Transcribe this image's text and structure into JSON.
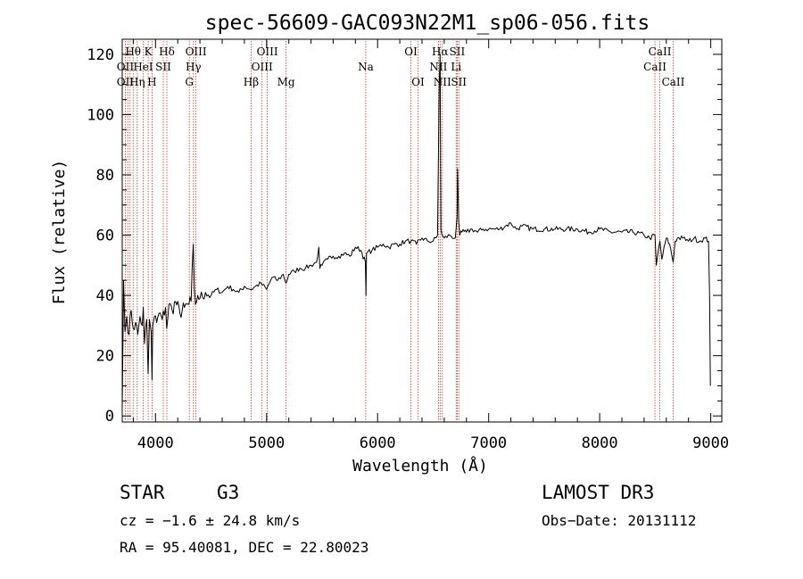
{
  "chart_data": {
    "type": "line",
    "title": "spec-56609-GAC093N22M1_sp06-056.fits",
    "xlabel": "Wavelength (Å)",
    "ylabel": "Flux (relative)",
    "xlim": [
      3700,
      9100
    ],
    "ylim": [
      -2,
      125
    ],
    "xticks": [
      4000,
      5000,
      6000,
      7000,
      8000,
      9000
    ],
    "yticks": [
      0,
      20,
      40,
      60,
      80,
      100,
      120
    ],
    "series": [
      {
        "name": "flux",
        "x": [
          3700,
          3712,
          3725,
          3740,
          3760,
          3780,
          3800,
          3820,
          3840,
          3860,
          3880,
          3890,
          3900,
          3920,
          3933,
          3945,
          3960,
          3968,
          3975,
          3990,
          4010,
          4030,
          4060,
          4090,
          4101,
          4120,
          4150,
          4180,
          4220,
          4260,
          4300,
          4320,
          4340,
          4350,
          4360,
          4380,
          4400,
          4450,
          4500,
          4550,
          4600,
          4650,
          4700,
          4750,
          4800,
          4861,
          4900,
          4950,
          5000,
          5050,
          5100,
          5150,
          5175,
          5200,
          5250,
          5300,
          5350,
          5400,
          5450,
          5470,
          5480,
          5500,
          5550,
          5600,
          5650,
          5700,
          5750,
          5800,
          5850,
          5890,
          5895,
          5900,
          5950,
          6000,
          6050,
          6100,
          6150,
          6200,
          6250,
          6300,
          6350,
          6400,
          6450,
          6500,
          6540,
          6555,
          6563,
          6570,
          6580,
          6600,
          6650,
          6700,
          6716,
          6720,
          6731,
          6740,
          6760,
          6800,
          6850,
          6900,
          6950,
          7000,
          7050,
          7100,
          7150,
          7200,
          7250,
          7300,
          7400,
          7500,
          7600,
          7700,
          7800,
          7900,
          8000,
          8100,
          8200,
          8300,
          8400,
          8450,
          8498,
          8510,
          8542,
          8560,
          8600,
          8630,
          8662,
          8680,
          8700,
          8750,
          8800,
          8850,
          8900,
          8950,
          8980,
          8990,
          8997
        ],
        "y": [
          2,
          45,
          28,
          33,
          27,
          35,
          29,
          31,
          27,
          33,
          30,
          36,
          24,
          32,
          14,
          32,
          28,
          12,
          30,
          33,
          31,
          34,
          32,
          36,
          29,
          37,
          35,
          38,
          34,
          36,
          37,
          38,
          57,
          42,
          37,
          40,
          39,
          41,
          40,
          42,
          41,
          43,
          42,
          41,
          43,
          42,
          43,
          44,
          42,
          46,
          45,
          47,
          44,
          47,
          48,
          49,
          49,
          50,
          51,
          56,
          49,
          50,
          52,
          53,
          53,
          54,
          53,
          56,
          55,
          51,
          40,
          54,
          55,
          56,
          57,
          56,
          57,
          57,
          58,
          58,
          57,
          59,
          58,
          58,
          60,
          110,
          120,
          62,
          60,
          59,
          60,
          59,
          66,
          82,
          64,
          60,
          61,
          61,
          62,
          61,
          62,
          62,
          62,
          62,
          63,
          64,
          62,
          63,
          62,
          62,
          62,
          62,
          62,
          61,
          62,
          61,
          61,
          61,
          60,
          59,
          60,
          50,
          58,
          52,
          59,
          57,
          51,
          58,
          59,
          59,
          58,
          59,
          58,
          59,
          58,
          40,
          10
        ]
      }
    ],
    "line_labels": [
      {
        "label": "Hθ",
        "wl": 3798,
        "row": 0
      },
      {
        "label": "K",
        "wl": 3934,
        "row": 0
      },
      {
        "label": "Hδ",
        "wl": 4102,
        "row": 0
      },
      {
        "label": "OIII",
        "wl": 4364,
        "row": 0
      },
      {
        "label": "OIII",
        "wl": 5007,
        "row": 0
      },
      {
        "label": "OI",
        "wl": 6300,
        "row": 0
      },
      {
        "label": "Hα",
        "wl": 6563,
        "row": 0
      },
      {
        "label": "SII",
        "wl": 6717,
        "row": 0
      },
      {
        "label": "CaII",
        "wl": 8542,
        "row": 0
      },
      {
        "label": "OII",
        "wl": 3727,
        "row": 1
      },
      {
        "label": "HeI",
        "wl": 3889,
        "row": 1
      },
      {
        "label": "SII",
        "wl": 4070,
        "row": 1
      },
      {
        "label": "Hγ",
        "wl": 4341,
        "row": 1
      },
      {
        "label": "OIII",
        "wl": 4959,
        "row": 1
      },
      {
        "label": "Na",
        "wl": 5893,
        "row": 1
      },
      {
        "label": "NII",
        "wl": 6548,
        "row": 1
      },
      {
        "label": "Li",
        "wl": 6708,
        "row": 1
      },
      {
        "label": "CaII",
        "wl": 8498,
        "row": 1
      },
      {
        "label": "OII",
        "wl": 3727,
        "row": 2
      },
      {
        "label": "Hη",
        "wl": 3835,
        "row": 2
      },
      {
        "label": "H",
        "wl": 3968,
        "row": 2
      },
      {
        "label": "G",
        "wl": 4304,
        "row": 2
      },
      {
        "label": "Hβ",
        "wl": 4861,
        "row": 2
      },
      {
        "label": "Mg",
        "wl": 5175,
        "row": 2
      },
      {
        "label": "OI",
        "wl": 6364,
        "row": 2
      },
      {
        "label": "NII",
        "wl": 6583,
        "row": 2
      },
      {
        "label": "SII",
        "wl": 6731,
        "row": 2
      },
      {
        "label": "CaII",
        "wl": 8662,
        "row": 2
      }
    ],
    "reference_lines_wl": [
      3727,
      3750,
      3771,
      3798,
      3835,
      3889,
      3934,
      3968,
      4070,
      4102,
      4304,
      4341,
      4364,
      4861,
      4959,
      5007,
      5175,
      5893,
      6300,
      6364,
      6548,
      6563,
      6583,
      6708,
      6717,
      6731,
      8498,
      8542,
      8662
    ]
  },
  "info": {
    "object_class": "STAR",
    "subclass": "G3",
    "survey": "LAMOST DR3",
    "redshift": "cz = −1.6 ± 24.8 km/s",
    "obs_date": "Obs−Date: 20131112",
    "coords": "RA =  95.40081, DEC =  22.80023"
  }
}
